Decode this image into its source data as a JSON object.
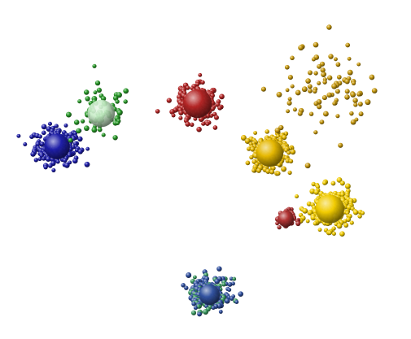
{
  "chart_data": {
    "type": "scatter",
    "rendering": "3d-spheres",
    "grid": false,
    "legend": "none",
    "xlim": [
      0,
      100
    ],
    "ylim": [
      0,
      100
    ],
    "clusters": [
      {
        "id": "blue-west",
        "color": "#1e1ea8",
        "center": [
          13,
          57
        ],
        "spread": [
          5,
          5
        ],
        "count": 260,
        "centroid_radius": 3.2,
        "label": ""
      },
      {
        "id": "green-sparse",
        "color": "#2a9a2a",
        "center": [
          24,
          67
        ],
        "spread": [
          7,
          8
        ],
        "count": 70,
        "centroid_radius": 3.4,
        "centroid_color": "#c6ecc6",
        "label": ""
      },
      {
        "id": "red-north",
        "color": "#b32424",
        "center": [
          48,
          70
        ],
        "spread": [
          4.5,
          5
        ],
        "count": 260,
        "centroid_radius": 3.6,
        "label": ""
      },
      {
        "id": "gold-center",
        "color": "#e6b800",
        "center": [
          66,
          55
        ],
        "spread": [
          4.5,
          5
        ],
        "count": 240,
        "centroid_radius": 3.4,
        "label": ""
      },
      {
        "id": "gold-sparse",
        "color": "#c89a10",
        "center": [
          80,
          76
        ],
        "spread": [
          10,
          12
        ],
        "count": 90,
        "centroid_radius": 0,
        "label": ""
      },
      {
        "id": "gold-east",
        "color": "#f2cc00",
        "center": [
          81,
          38
        ],
        "spread": [
          5,
          5.5
        ],
        "count": 280,
        "centroid_radius": 3.6,
        "label": ""
      },
      {
        "id": "red-small",
        "color": "#b03030",
        "center": [
          70,
          35
        ],
        "spread": [
          2,
          2.5
        ],
        "count": 50,
        "centroid_radius": 2.0,
        "label": ""
      },
      {
        "id": "blue-green-south",
        "color": "#3050a0",
        "alt_color": "#3a9a60",
        "center": [
          51,
          12
        ],
        "spread": [
          4.5,
          5
        ],
        "count": 260,
        "centroid_radius": 2.6,
        "label": ""
      }
    ]
  }
}
